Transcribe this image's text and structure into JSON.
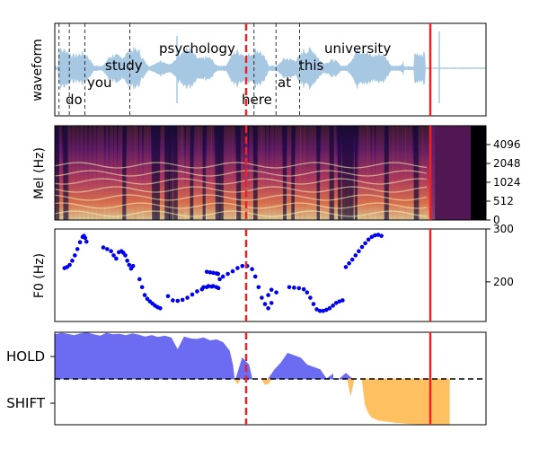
{
  "chart_data": [
    {
      "type": "area",
      "ylabel": "waveform",
      "words": [
        {
          "text": "do",
          "start": 0.03,
          "level": "low"
        },
        {
          "text": "you",
          "start": 0.09,
          "level": "mid"
        },
        {
          "text": "study",
          "start": 0.14,
          "level": "upper"
        },
        {
          "text": "psychology",
          "start": 0.29,
          "level": "top"
        },
        {
          "text": "here",
          "start": 0.52,
          "level": "low"
        },
        {
          "text": "at",
          "start": 0.62,
          "level": "mid"
        },
        {
          "text": "this",
          "start": 0.68,
          "level": "upper"
        },
        {
          "text": "university",
          "start": 0.75,
          "level": "top"
        }
      ],
      "word_boundaries": [
        0.013,
        0.045,
        0.093,
        0.232,
        0.616,
        0.684,
        0.757
      ],
      "color": "#a6c8e3"
    },
    {
      "type": "heatmap",
      "ylabel": "Mel (Hz)",
      "yticks": [
        "0",
        "512",
        "1024",
        "2048",
        "4096"
      ],
      "active_end": 0.965,
      "colormap": "magma"
    },
    {
      "type": "scatter",
      "ylabel": "F0 (Hz)",
      "yticks": [
        200,
        300
      ],
      "ylim": [
        125,
        300
      ],
      "color": "#0000ee",
      "segments": [
        {
          "x": [
            0.03,
            0.038,
            0.046,
            0.054,
            0.062,
            0.07,
            0.078,
            0.086,
            0.09,
            0.094,
            0.098
          ],
          "y": [
            226,
            228,
            232,
            240,
            250,
            262,
            275,
            285,
            287,
            283,
            276
          ]
        },
        {
          "x": [
            0.15,
            0.162,
            0.174,
            0.182,
            0.19,
            0.198,
            0.206,
            0.212,
            0.218,
            0.224,
            0.23,
            0.236,
            0.242
          ],
          "y": [
            265,
            262,
            258,
            250,
            244,
            256,
            258,
            255,
            250,
            240,
            232,
            225,
            230
          ]
        },
        {
          "x": [
            0.262,
            0.27,
            0.278,
            0.286,
            0.294,
            0.302,
            0.31,
            0.318,
            0.326
          ],
          "y": [
            205,
            190,
            175,
            168,
            163,
            159,
            155,
            152,
            150
          ]
        },
        {
          "x": [
            0.35,
            0.365,
            0.38,
            0.395,
            0.41,
            0.425,
            0.44,
            0.455,
            0.47,
            0.485
          ],
          "y": [
            173,
            165,
            164,
            166,
            170,
            176,
            182,
            186,
            190,
            191
          ]
        },
        {
          "x": [
            0.46,
            0.475,
            0.49,
            0.5,
            0.506
          ],
          "y": [
            190,
            192,
            192,
            190,
            188
          ]
        },
        {
          "x": [
            0.47,
            0.48,
            0.49,
            0.5,
            0.505
          ],
          "y": [
            219,
            218,
            217,
            216,
            215
          ]
        },
        {
          "x": [
            0.51,
            0.52,
            0.535,
            0.55,
            0.565,
            0.58,
            0.595,
            0.61,
            0.62,
            0.63,
            0.64,
            0.65,
            0.66,
            0.67
          ],
          "y": [
            205,
            210,
            215,
            220,
            226,
            230,
            230,
            224,
            210,
            190,
            170,
            158,
            150,
            160
          ]
        },
        {
          "x": [
            0.66,
            0.67,
            0.685
          ],
          "y": [
            175,
            185,
            180
          ]
        },
        {
          "x": [
            0.725,
            0.74,
            0.755,
            0.77,
            0.78,
            0.79,
            0.8,
            0.81,
            0.82,
            0.83,
            0.84,
            0.85,
            0.86,
            0.87,
            0.88,
            0.89
          ],
          "y": [
            190,
            189,
            188,
            186,
            180,
            170,
            158,
            148,
            145,
            145,
            147,
            150,
            155,
            160,
            163,
            165
          ]
        },
        {
          "x": [
            0.9,
            0.91,
            0.92,
            0.93,
            0.94,
            0.95,
            0.96,
            0.97,
            0.98,
            0.99,
            1.0,
            1.01
          ],
          "y": [
            228,
            235,
            242,
            250,
            258,
            266,
            273,
            280,
            285,
            288,
            289,
            287
          ]
        }
      ]
    },
    {
      "type": "area",
      "yticks": [
        "HOLD",
        "SHIFT"
      ],
      "hold_color": "#4848f0",
      "shift_color": "#ffb13b",
      "hold": {
        "x": [
          0.0,
          0.02,
          0.04,
          0.06,
          0.08,
          0.1,
          0.12,
          0.14,
          0.16,
          0.18,
          0.2,
          0.22,
          0.24,
          0.26,
          0.28,
          0.3,
          0.32,
          0.34,
          0.36,
          0.38,
          0.4,
          0.42,
          0.44,
          0.46,
          0.48,
          0.5,
          0.52,
          0.54,
          0.55,
          0.555
        ],
        "y": [
          0.95,
          0.98,
          0.96,
          0.93,
          0.97,
          0.99,
          0.95,
          0.92,
          0.98,
          0.95,
          0.96,
          0.93,
          0.97,
          0.94,
          0.9,
          0.93,
          0.89,
          0.92,
          0.88,
          0.62,
          0.9,
          0.86,
          0.85,
          0.88,
          0.82,
          0.84,
          0.78,
          0.6,
          0.3,
          0.0
        ]
      },
      "hold_bumps": [
        {
          "x": [
            0.56,
            0.58,
            0.6,
            0.61
          ],
          "y": [
            0.0,
            0.45,
            0.3,
            0.0
          ]
        },
        {
          "x": [
            0.66,
            0.68,
            0.7,
            0.72,
            0.74,
            0.76,
            0.78,
            0.8,
            0.82,
            0.84,
            0.86
          ],
          "y": [
            0.0,
            0.2,
            0.35,
            0.55,
            0.5,
            0.45,
            0.3,
            0.25,
            0.2,
            0.0,
            0.1
          ]
        },
        {
          "x": [
            0.88,
            0.9,
            0.92
          ],
          "y": [
            0.0,
            0.12,
            0.0
          ]
        }
      ],
      "shift": {
        "x": [
          0.95,
          0.96,
          0.97,
          0.98,
          1.0,
          1.05,
          1.1,
          1.15,
          1.2,
          1.22
        ],
        "y": [
          0.0,
          -0.55,
          -0.72,
          -0.82,
          -0.88,
          -0.93,
          -0.96,
          -0.97,
          -0.98,
          -0.98
        ]
      },
      "shift_bumps": [
        {
          "x": [
            0.555,
            0.565,
            0.575
          ],
          "y": [
            0.0,
            -0.1,
            0.0
          ]
        },
        {
          "x": [
            0.64,
            0.65,
            0.66,
            0.67
          ],
          "y": [
            0.0,
            -0.12,
            -0.1,
            0.0
          ]
        },
        {
          "x": [
            0.905,
            0.915,
            0.925
          ],
          "y": [
            0.0,
            -0.35,
            0.0
          ]
        }
      ]
    }
  ],
  "markers": {
    "dashed_x": 0.5,
    "solid_x": 0.97,
    "color": "#ee2222"
  }
}
